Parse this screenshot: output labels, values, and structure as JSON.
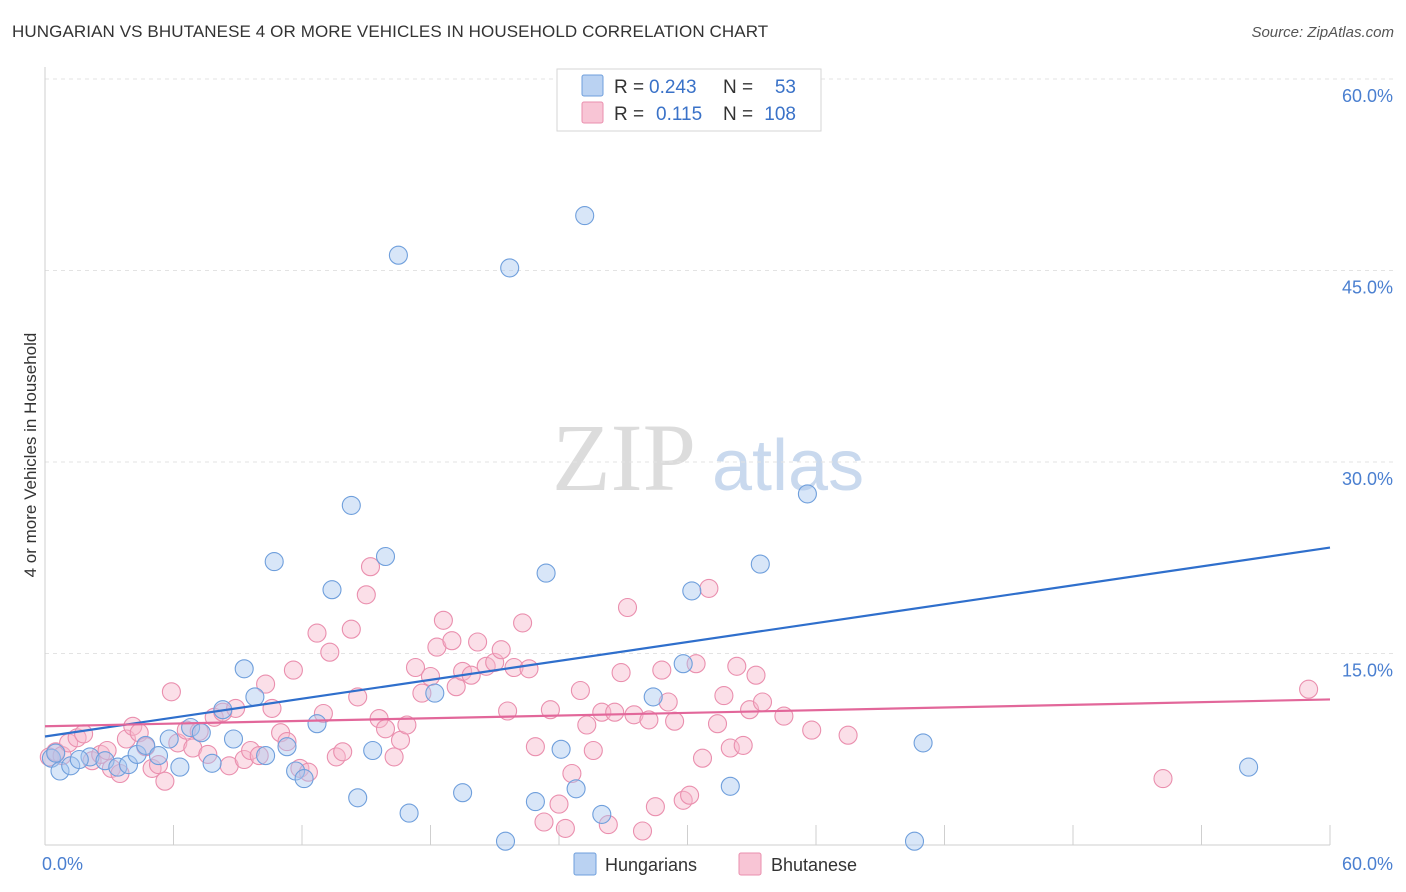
{
  "title": "HUNGARIAN VS BHUTANESE 4 OR MORE VEHICLES IN HOUSEHOLD CORRELATION CHART",
  "source": "Source: ZipAtlas.com",
  "watermark": {
    "zip": "ZIP",
    "atlas": "atlas"
  },
  "legend": {
    "r_label": "R =",
    "n_label": "N =",
    "rows": [
      {
        "r": "0.243",
        "n": "53",
        "color": "#a9c7ef"
      },
      {
        "r": "0.115",
        "n": "108",
        "color": "#f6b7cb"
      }
    ]
  },
  "bottom_legend": [
    {
      "label": "Hungarians",
      "color": "#a9c7ef"
    },
    {
      "label": "Bhutanese",
      "color": "#f6b7cb"
    }
  ],
  "colors": {
    "hungarian_fill": "#a9c7ef",
    "hungarian_stroke": "#6f9fdc",
    "hungarian_line": "#2f6fcc",
    "bhutanese_fill": "#f6b7cb",
    "bhutanese_stroke": "#ea8fae",
    "bhutanese_line": "#e2679a",
    "tick": "#4a7fd0"
  },
  "chart_data": {
    "type": "scatter",
    "title": "HUNGARIAN VS BHUTANESE 4 OR MORE VEHICLES IN HOUSEHOLD CORRELATION CHART",
    "xlabel": "",
    "ylabel": "4 or more Vehicles in Household",
    "xlim": [
      0,
      60
    ],
    "ylim": [
      0,
      60
    ],
    "x_ticks": [
      "0.0%",
      "60.0%"
    ],
    "y_ticks": [
      "15.0%",
      "30.0%",
      "45.0%",
      "60.0%"
    ],
    "y_tick_values": [
      15,
      30,
      45,
      60
    ],
    "grid": "dashed horizontal",
    "legend_position": "top-center",
    "series": [
      {
        "name": "Hungarians",
        "r": 0.243,
        "n": 53,
        "trend": {
          "x": [
            0,
            60
          ],
          "y": [
            8.5,
            23.3
          ]
        },
        "points": [
          [
            0.3,
            6.8
          ],
          [
            0.7,
            5.8
          ],
          [
            1.2,
            6.2
          ],
          [
            2.1,
            6.9
          ],
          [
            2.8,
            6.6
          ],
          [
            3.4,
            6.1
          ],
          [
            3.9,
            6.3
          ],
          [
            4.3,
            7.1
          ],
          [
            4.7,
            7.8
          ],
          [
            5.3,
            7.0
          ],
          [
            5.8,
            8.3
          ],
          [
            6.3,
            6.1
          ],
          [
            6.8,
            9.2
          ],
          [
            7.3,
            8.8
          ],
          [
            7.8,
            6.4
          ],
          [
            8.3,
            10.6
          ],
          [
            8.8,
            8.3
          ],
          [
            9.3,
            13.8
          ],
          [
            9.8,
            11.6
          ],
          [
            10.3,
            7.0
          ],
          [
            10.7,
            22.2
          ],
          [
            11.3,
            7.7
          ],
          [
            11.7,
            5.8
          ],
          [
            12.1,
            5.2
          ],
          [
            12.7,
            9.5
          ],
          [
            13.4,
            20.0
          ],
          [
            14.3,
            26.6
          ],
          [
            14.6,
            3.7
          ],
          [
            15.3,
            7.4
          ],
          [
            15.9,
            22.6
          ],
          [
            16.5,
            46.2
          ],
          [
            17.0,
            2.5
          ],
          [
            18.2,
            11.9
          ],
          [
            19.5,
            4.1
          ],
          [
            21.5,
            0.3
          ],
          [
            21.7,
            45.2
          ],
          [
            22.9,
            3.4
          ],
          [
            23.4,
            21.3
          ],
          [
            24.1,
            7.5
          ],
          [
            24.8,
            4.4
          ],
          [
            25.2,
            49.3
          ],
          [
            26.0,
            2.4
          ],
          [
            28.4,
            11.6
          ],
          [
            29.8,
            14.2
          ],
          [
            30.2,
            19.9
          ],
          [
            32.0,
            4.6
          ],
          [
            33.4,
            22.0
          ],
          [
            35.6,
            27.5
          ],
          [
            40.6,
            0.3
          ],
          [
            41.0,
            8.0
          ],
          [
            56.2,
            6.1
          ],
          [
            0.5,
            7.2
          ],
          [
            1.6,
            6.7
          ]
        ]
      },
      {
        "name": "Bhutanese",
        "r": 0.115,
        "n": 108,
        "trend": {
          "x": [
            0,
            60
          ],
          "y": [
            9.3,
            11.4
          ]
        },
        "points": [
          [
            0.2,
            6.9
          ],
          [
            0.5,
            7.3
          ],
          [
            0.8,
            7.0
          ],
          [
            1.1,
            8.0
          ],
          [
            1.5,
            8.4
          ],
          [
            1.8,
            8.7
          ],
          [
            2.2,
            6.6
          ],
          [
            2.6,
            7.1
          ],
          [
            2.9,
            7.4
          ],
          [
            3.1,
            6.0
          ],
          [
            3.5,
            5.6
          ],
          [
            3.8,
            8.3
          ],
          [
            4.1,
            9.3
          ],
          [
            4.4,
            8.8
          ],
          [
            4.7,
            7.7
          ],
          [
            5.0,
            6.0
          ],
          [
            5.3,
            6.3
          ],
          [
            5.6,
            5.0
          ],
          [
            5.9,
            12.0
          ],
          [
            6.2,
            8.0
          ],
          [
            6.6,
            9.0
          ],
          [
            6.9,
            7.6
          ],
          [
            7.2,
            8.9
          ],
          [
            7.6,
            7.1
          ],
          [
            7.9,
            10.0
          ],
          [
            8.3,
            10.4
          ],
          [
            8.6,
            6.2
          ],
          [
            8.9,
            10.7
          ],
          [
            9.3,
            6.7
          ],
          [
            9.6,
            7.4
          ],
          [
            10.0,
            7.0
          ],
          [
            10.3,
            12.6
          ],
          [
            10.6,
            10.7
          ],
          [
            11.0,
            8.8
          ],
          [
            11.3,
            8.1
          ],
          [
            11.6,
            13.7
          ],
          [
            11.9,
            6.0
          ],
          [
            12.3,
            5.7
          ],
          [
            12.7,
            16.6
          ],
          [
            13.0,
            10.3
          ],
          [
            13.3,
            15.1
          ],
          [
            13.6,
            6.9
          ],
          [
            13.9,
            7.3
          ],
          [
            14.3,
            16.9
          ],
          [
            14.6,
            11.6
          ],
          [
            15.0,
            19.6
          ],
          [
            15.2,
            21.8
          ],
          [
            15.6,
            9.9
          ],
          [
            15.9,
            9.1
          ],
          [
            16.3,
            6.9
          ],
          [
            16.6,
            8.2
          ],
          [
            16.9,
            9.4
          ],
          [
            17.3,
            13.9
          ],
          [
            17.6,
            11.9
          ],
          [
            18.0,
            13.2
          ],
          [
            18.3,
            15.5
          ],
          [
            18.6,
            17.6
          ],
          [
            19.0,
            16.0
          ],
          [
            19.2,
            12.4
          ],
          [
            19.5,
            13.6
          ],
          [
            19.9,
            13.3
          ],
          [
            20.2,
            15.9
          ],
          [
            20.6,
            14.0
          ],
          [
            21.0,
            14.3
          ],
          [
            21.3,
            15.3
          ],
          [
            21.6,
            10.5
          ],
          [
            21.9,
            13.9
          ],
          [
            22.3,
            17.4
          ],
          [
            22.6,
            13.8
          ],
          [
            22.9,
            7.7
          ],
          [
            23.3,
            1.8
          ],
          [
            23.6,
            10.6
          ],
          [
            24.0,
            3.2
          ],
          [
            24.3,
            1.3
          ],
          [
            24.6,
            5.6
          ],
          [
            25.0,
            12.1
          ],
          [
            25.3,
            9.4
          ],
          [
            25.6,
            7.4
          ],
          [
            26.0,
            10.4
          ],
          [
            26.3,
            1.6
          ],
          [
            26.6,
            10.4
          ],
          [
            26.9,
            13.5
          ],
          [
            27.2,
            18.6
          ],
          [
            27.5,
            10.2
          ],
          [
            27.9,
            1.1
          ],
          [
            28.2,
            9.8
          ],
          [
            28.5,
            3.0
          ],
          [
            28.8,
            13.7
          ],
          [
            29.1,
            11.2
          ],
          [
            29.4,
            9.7
          ],
          [
            29.8,
            3.5
          ],
          [
            30.1,
            3.9
          ],
          [
            30.4,
            14.2
          ],
          [
            30.7,
            6.8
          ],
          [
            31.0,
            20.1
          ],
          [
            31.4,
            9.5
          ],
          [
            31.7,
            11.7
          ],
          [
            32.0,
            7.6
          ],
          [
            32.3,
            14.0
          ],
          [
            32.6,
            7.8
          ],
          [
            32.9,
            10.6
          ],
          [
            33.2,
            13.3
          ],
          [
            33.5,
            11.2
          ],
          [
            34.5,
            10.1
          ],
          [
            35.8,
            9.0
          ],
          [
            37.5,
            8.6
          ],
          [
            52.2,
            5.2
          ],
          [
            59.0,
            12.2
          ]
        ]
      }
    ]
  }
}
